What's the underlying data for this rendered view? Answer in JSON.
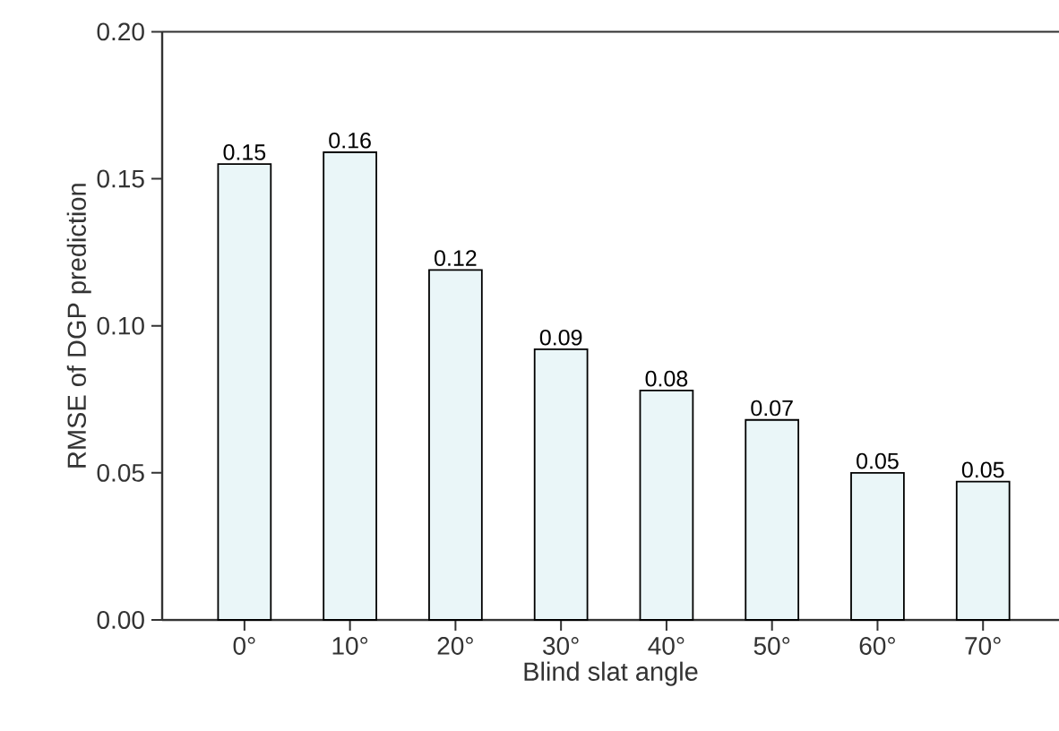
{
  "chart_data": {
    "type": "bar",
    "xlabel": "Blind slat angle",
    "ylabel": "RMSE of DGP prediction",
    "categories": [
      "0°",
      "10°",
      "20°",
      "30°",
      "40°",
      "50°",
      "60°",
      "70°"
    ],
    "values": [
      0.155,
      0.159,
      0.119,
      0.092,
      0.078,
      0.068,
      0.05,
      0.047
    ],
    "value_labels": [
      "0.15",
      "0.16",
      "0.12",
      "0.09",
      "0.08",
      "0.07",
      "0.05",
      "0.05"
    ],
    "color": "#eaf6f8",
    "ylim": [
      0,
      0.2
    ],
    "yticks": [
      {
        "value": 0,
        "label": "0.00"
      },
      {
        "value": 0.05,
        "label": "0.05"
      },
      {
        "value": 0.1,
        "label": "0.10"
      },
      {
        "value": 0.15,
        "label": "0.15"
      },
      {
        "value": 0.2,
        "label": "0.20"
      }
    ],
    "grid": false
  }
}
